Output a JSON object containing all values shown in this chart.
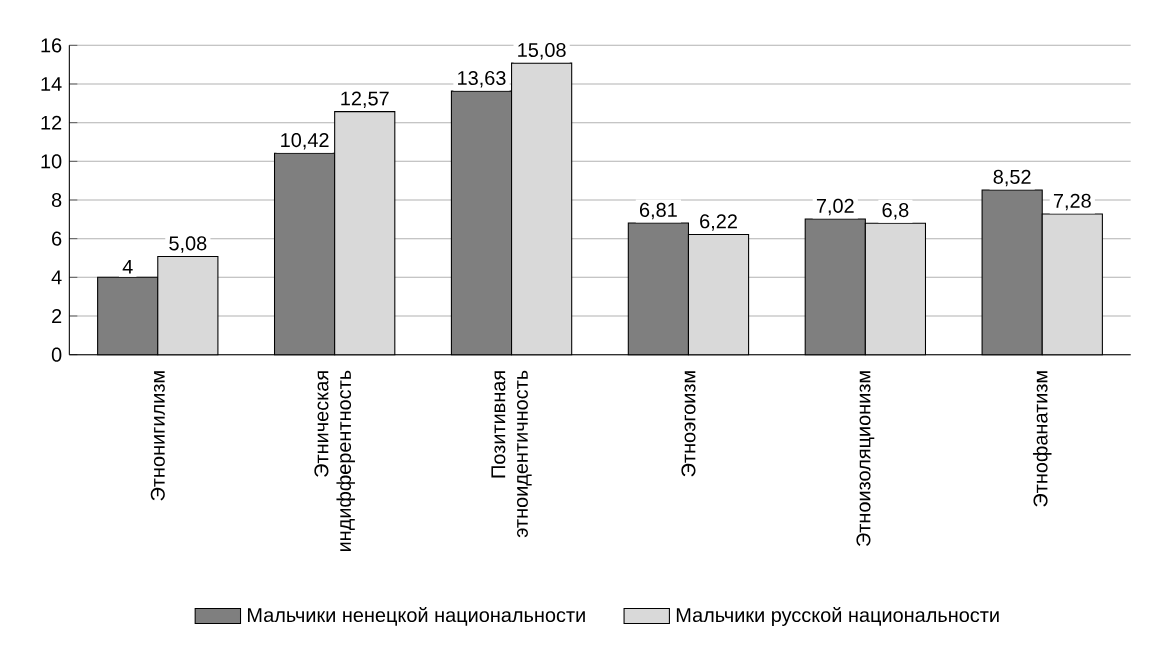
{
  "chart_data": {
    "type": "bar",
    "categories": [
      "Этнонигилизм",
      "Этническая индифферентность",
      "Позитивная этноидентичность",
      "Этноэгоизм",
      "Этноизоляционизм",
      "Этнофанатизм"
    ],
    "series": [
      {
        "name": "Мальчики ненецкой национальности",
        "color": "#7f7f7f",
        "values": [
          4,
          10.42,
          13.63,
          6.81,
          7.02,
          8.52
        ],
        "value_labels": [
          "4",
          "10,42",
          "13,63",
          "6,81",
          "7,02",
          "8,52"
        ]
      },
      {
        "name": "Мальчики русской национальности",
        "color": "#d9d9d9",
        "values": [
          5.08,
          12.57,
          15.08,
          6.22,
          6.8,
          7.28
        ],
        "value_labels": [
          "5,08",
          "12,57",
          "15,08",
          "6,22",
          "6,8",
          "7,28"
        ]
      }
    ],
    "ylim": [
      0,
      16
    ],
    "yticks": [
      0,
      2,
      4,
      6,
      8,
      10,
      12,
      14,
      16
    ],
    "grid": "y",
    "legend": "bottom"
  }
}
